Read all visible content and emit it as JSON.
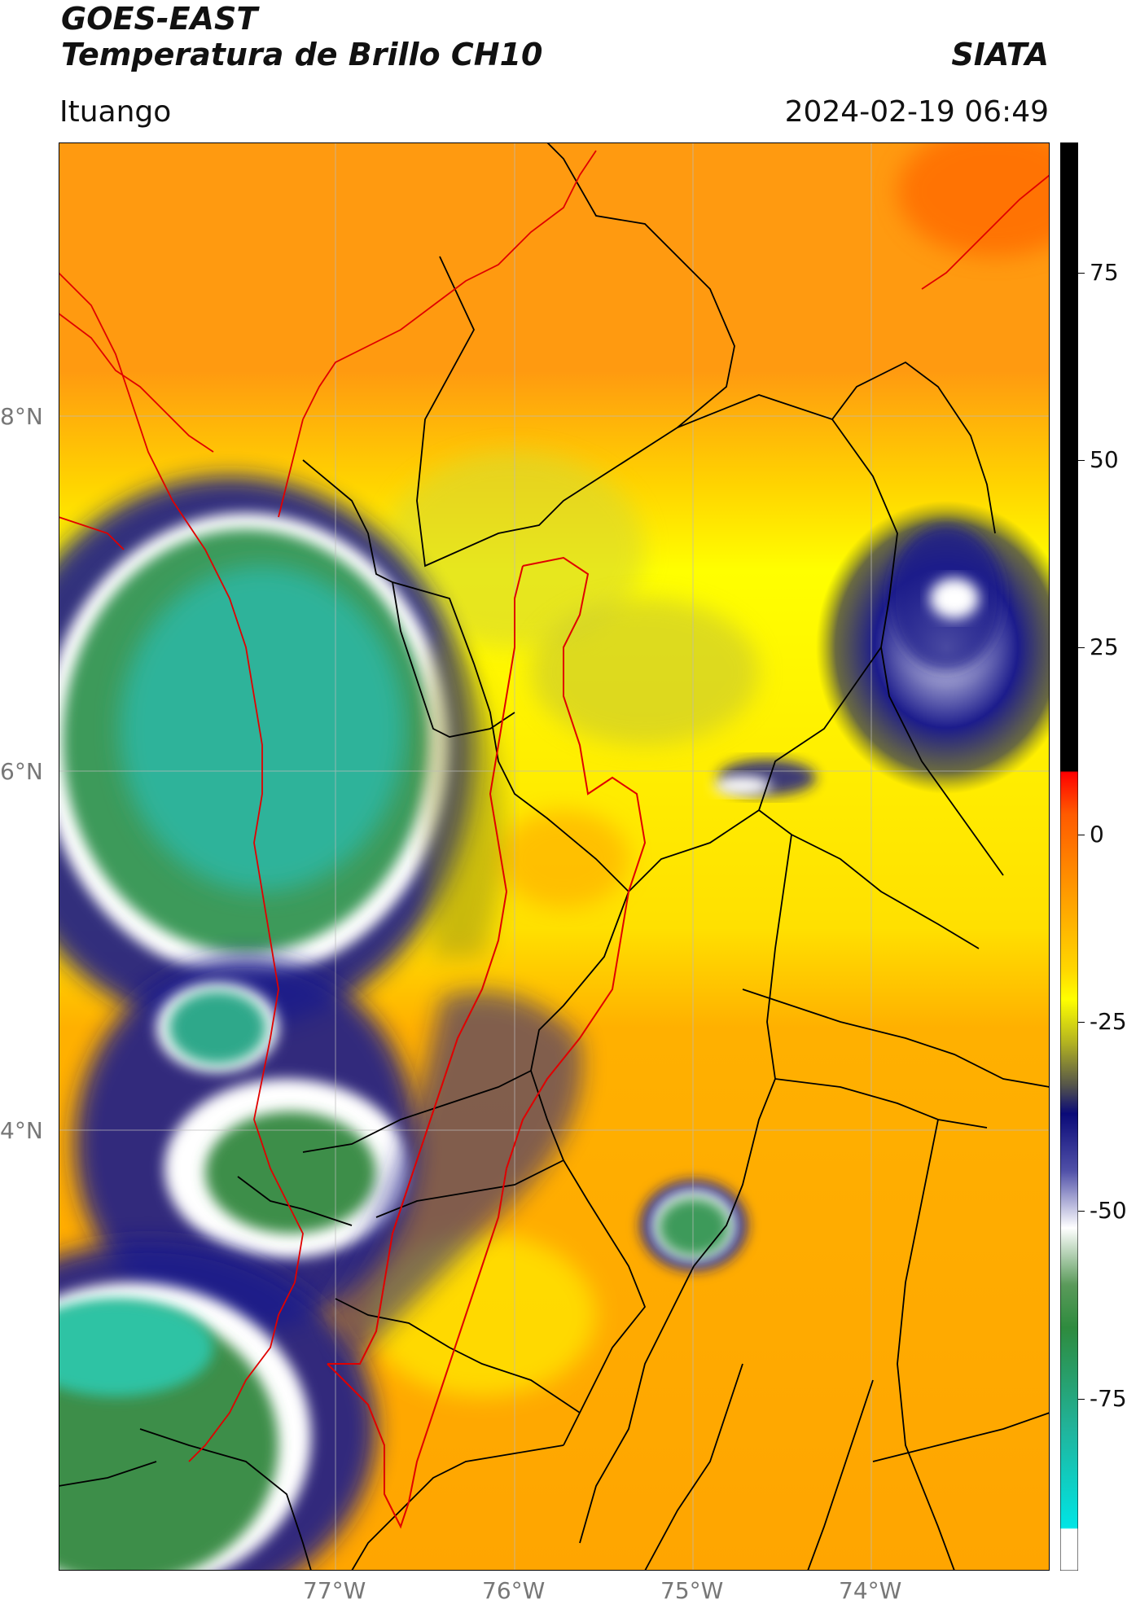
{
  "header": {
    "satellite": "GOES-EAST",
    "product": "Temperatura de Brillo CH10",
    "organization": "SIATA",
    "location": "Ituango",
    "datetime": "2024-02-19 06:49"
  },
  "map": {
    "lat_ticks": [
      "8°N",
      "6°N",
      "4°N"
    ],
    "lon_ticks": [
      "77°W",
      "76°W",
      "75°W",
      "74°W"
    ]
  },
  "colorbar": {
    "ticks": [
      "75",
      "50",
      "25",
      "0",
      "-25",
      "-50",
      "-75"
    ],
    "colors": {
      "black": "#000000",
      "red": "#ff0000",
      "orange": "#ff8c00",
      "yellow": "#ffff00",
      "olive": "#8a8a1a",
      "navy": "#0a0a78",
      "white": "#ffffff",
      "green": "#2e8b3e",
      "teal": "#21b39a",
      "cyan": "#00e5e5"
    }
  }
}
